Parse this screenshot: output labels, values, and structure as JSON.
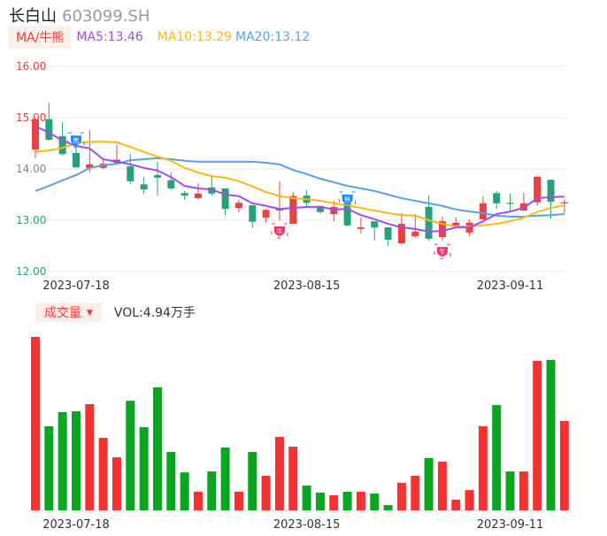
{
  "header": {
    "name": "长白山",
    "code": "603099.SH"
  },
  "legend": {
    "tag": "MA/牛熊",
    "ma5": "MA5:13.46",
    "ma10": "MA10:13.29",
    "ma20": "MA20:13.12"
  },
  "volume_legend": {
    "tag": "成交量",
    "dropdown_icon": "caret-down-icon",
    "value": "VOL:4.94万手"
  },
  "colors": {
    "up": "#eb4040",
    "down": "#27a17c",
    "vol_up": "#f53232",
    "vol_down": "#0aa521",
    "ma5": "#a24cf0",
    "ma10": "#fdb713",
    "ma20": "#55a0f0",
    "bear": "#1a8cf5",
    "bull": "#f5336b"
  },
  "chart_data": {
    "type": "candlestick",
    "y_ticks": [
      "16.00",
      "15.00",
      "14.00",
      "13.00",
      "12.00"
    ],
    "ylim": [
      12,
      16
    ],
    "x_labels": [
      {
        "index": 3,
        "label": "2023-07-18"
      },
      {
        "index": 20,
        "label": "2023-08-15"
      },
      {
        "index": 35,
        "label": "2023-09-11"
      }
    ],
    "ohlc": [
      [
        14.38,
        15.0,
        14.21,
        14.97
      ],
      [
        14.97,
        15.29,
        14.55,
        14.57
      ],
      [
        14.64,
        14.91,
        14.26,
        14.29
      ],
      [
        14.31,
        14.53,
        14.02,
        14.03
      ],
      [
        14.02,
        14.76,
        13.93,
        14.09
      ],
      [
        14.02,
        14.2,
        14.0,
        14.1
      ],
      [
        14.12,
        14.47,
        14.1,
        14.18
      ],
      [
        14.05,
        14.29,
        13.7,
        13.76
      ],
      [
        13.7,
        13.84,
        13.52,
        13.6
      ],
      [
        13.88,
        14.14,
        13.48,
        13.83
      ],
      [
        13.78,
        13.93,
        13.59,
        13.62
      ],
      [
        13.53,
        13.57,
        13.4,
        13.48
      ],
      [
        13.43,
        13.72,
        13.4,
        13.52
      ],
      [
        13.64,
        13.88,
        13.48,
        13.52
      ],
      [
        13.62,
        13.62,
        13.1,
        13.22
      ],
      [
        13.24,
        13.4,
        13.15,
        13.34
      ],
      [
        13.29,
        13.29,
        12.85,
        12.97
      ],
      [
        13.05,
        13.22,
        12.95,
        13.2
      ],
      [
        13.19,
        13.76,
        13.0,
        13.22
      ],
      [
        12.93,
        13.55,
        12.93,
        13.47
      ],
      [
        13.48,
        13.59,
        13.24,
        13.34
      ],
      [
        13.28,
        13.28,
        13.12,
        13.16
      ],
      [
        13.12,
        13.38,
        12.98,
        13.26
      ],
      [
        13.34,
        13.38,
        12.88,
        12.9
      ],
      [
        12.83,
        13.05,
        12.74,
        12.86
      ],
      [
        12.98,
        12.98,
        12.6,
        12.86
      ],
      [
        12.86,
        12.86,
        12.5,
        12.62
      ],
      [
        12.55,
        13.14,
        12.55,
        12.93
      ],
      [
        12.69,
        13.12,
        12.66,
        12.78
      ],
      [
        13.26,
        13.48,
        12.6,
        12.64
      ],
      [
        12.67,
        13.07,
        12.6,
        12.98
      ],
      [
        12.9,
        13.05,
        12.85,
        12.95
      ],
      [
        12.76,
        13.02,
        12.69,
        12.95
      ],
      [
        13.02,
        13.47,
        13.0,
        13.33
      ],
      [
        13.53,
        13.57,
        13.22,
        13.33
      ],
      [
        13.34,
        13.52,
        13.15,
        13.33
      ],
      [
        13.19,
        13.54,
        13.17,
        13.33
      ],
      [
        13.35,
        13.85,
        13.29,
        13.85
      ],
      [
        13.79,
        13.79,
        13.03,
        13.36
      ],
      [
        13.33,
        13.4,
        13.14,
        13.35
      ]
    ],
    "ma5": [
      14.83,
      14.71,
      14.55,
      14.45,
      14.4,
      14.19,
      14.14,
      14.09,
      14.02,
      13.97,
      13.84,
      13.67,
      13.62,
      13.6,
      13.5,
      13.47,
      13.33,
      13.28,
      13.22,
      13.24,
      13.26,
      13.26,
      13.21,
      13.22,
      13.1,
      13.02,
      12.93,
      12.86,
      12.83,
      12.78,
      12.79,
      12.86,
      12.86,
      12.98,
      13.12,
      13.17,
      13.24,
      13.43,
      13.45,
      13.46
    ],
    "ma10": [
      14.33,
      14.36,
      14.41,
      14.5,
      14.53,
      14.53,
      14.52,
      14.43,
      14.33,
      14.24,
      14.16,
      14.02,
      13.93,
      13.86,
      13.83,
      13.76,
      13.66,
      13.55,
      13.47,
      13.43,
      13.41,
      13.38,
      13.33,
      13.29,
      13.24,
      13.19,
      13.14,
      13.1,
      13.09,
      13.0,
      12.93,
      12.88,
      12.88,
      12.9,
      12.93,
      12.98,
      13.05,
      13.16,
      13.24,
      13.29
    ],
    "ma20": [
      13.57,
      13.67,
      13.78,
      13.88,
      14.02,
      14.07,
      14.1,
      14.17,
      14.19,
      14.21,
      14.19,
      14.16,
      14.14,
      14.14,
      14.14,
      14.14,
      14.14,
      14.12,
      14.09,
      13.98,
      13.9,
      13.81,
      13.74,
      13.67,
      13.62,
      13.57,
      13.5,
      13.43,
      13.38,
      13.33,
      13.28,
      13.21,
      13.17,
      13.14,
      13.09,
      13.07,
      13.07,
      13.09,
      13.1,
      13.12
    ],
    "volume_wan_shou": [
      9.59,
      4.65,
      5.43,
      5.48,
      5.87,
      4.01,
      2.93,
      6.06,
      4.6,
      6.8,
      3.23,
      2.1,
      1.03,
      2.15,
      3.47,
      1.03,
      3.23,
      1.91,
      4.06,
      3.52,
      1.37,
      0.98,
      0.83,
      1.03,
      1.03,
      0.93,
      0.29,
      1.52,
      1.91,
      2.89,
      2.69,
      0.59,
      1.12,
      4.65,
      5.82,
      2.15,
      2.15,
      8.27,
      8.32,
      4.94
    ],
    "markers": [
      {
        "index": 3,
        "type": "bear",
        "text": "熊"
      },
      {
        "index": 23,
        "type": "bear",
        "text": "熊"
      },
      {
        "index": 18,
        "type": "bull",
        "text": "牛"
      },
      {
        "index": 30,
        "type": "bull",
        "text": "牛"
      }
    ]
  }
}
